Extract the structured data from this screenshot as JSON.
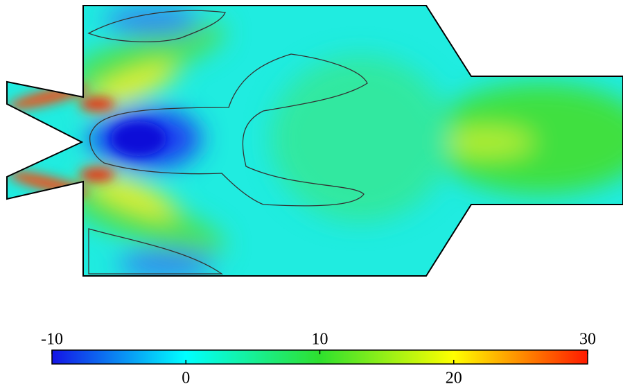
{
  "chart_data": {
    "type": "contour",
    "colorbar": {
      "lim": [
        -10,
        30
      ],
      "ticks": [
        -10,
        0,
        10,
        20,
        30
      ],
      "colors": [
        "#1414e6",
        "#00ffff",
        "#2ee02e",
        "#ffff00",
        "#ff1a00"
      ]
    }
  }
}
